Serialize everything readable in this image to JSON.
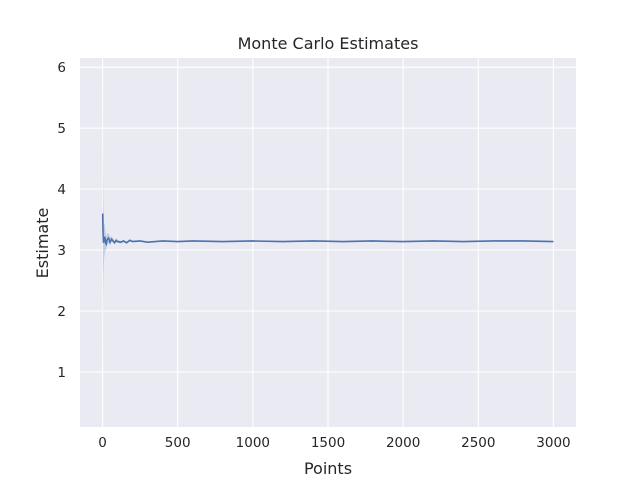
{
  "chart_data": {
    "type": "line",
    "title": "Monte Carlo Estimates",
    "xlabel": "Points",
    "ylabel": "Estimate",
    "xlim": [
      -150,
      3150
    ],
    "ylim": [
      0.1,
      6.15
    ],
    "xticks": [
      0,
      500,
      1000,
      1500,
      2000,
      2500,
      3000
    ],
    "yticks": [
      1,
      2,
      3,
      4,
      5,
      6
    ],
    "grid": true,
    "legend": "none",
    "colors": {
      "background": "#eaeaf2",
      "grid": "#ffffff",
      "line": "#4c72b0",
      "band": "#4c72b0"
    },
    "series": [
      {
        "x": [
          1,
          3,
          6,
          10,
          15,
          20,
          25,
          30,
          40,
          50,
          60,
          70,
          80,
          90,
          100,
          120,
          140,
          160,
          180,
          200,
          250,
          300,
          400,
          500,
          600,
          800,
          1000,
          1200,
          1400,
          1600,
          1800,
          2000,
          2200,
          2400,
          2600,
          2800,
          3000
        ],
        "values": [
          3.6,
          3.3,
          3.12,
          3.18,
          3.22,
          3.12,
          3.1,
          3.17,
          3.2,
          3.13,
          3.18,
          3.15,
          3.12,
          3.16,
          3.14,
          3.13,
          3.15,
          3.12,
          3.16,
          3.14,
          3.15,
          3.13,
          3.15,
          3.14,
          3.15,
          3.14,
          3.15,
          3.14,
          3.15,
          3.14,
          3.15,
          3.14,
          3.15,
          3.14,
          3.15,
          3.15,
          3.14
        ],
        "lower": [
          1.0,
          2.2,
          2.6,
          2.85,
          2.95,
          3.0,
          3.02,
          3.08,
          3.12,
          3.08,
          3.14,
          3.12,
          3.1,
          3.13,
          3.12,
          3.11,
          3.13,
          3.11,
          3.14,
          3.13,
          3.14,
          3.12,
          3.14,
          3.13,
          3.14,
          3.13,
          3.14,
          3.13,
          3.14,
          3.13,
          3.14,
          3.13,
          3.14,
          3.13,
          3.14,
          3.14,
          3.13
        ],
        "upper": [
          5.9,
          4.4,
          3.7,
          3.45,
          3.4,
          3.3,
          3.22,
          3.27,
          3.28,
          3.2,
          3.23,
          3.19,
          3.15,
          3.19,
          3.17,
          3.15,
          3.17,
          3.14,
          3.18,
          3.16,
          3.16,
          3.14,
          3.16,
          3.15,
          3.16,
          3.15,
          3.16,
          3.15,
          3.16,
          3.15,
          3.16,
          3.15,
          3.16,
          3.15,
          3.16,
          3.16,
          3.15
        ]
      }
    ]
  }
}
